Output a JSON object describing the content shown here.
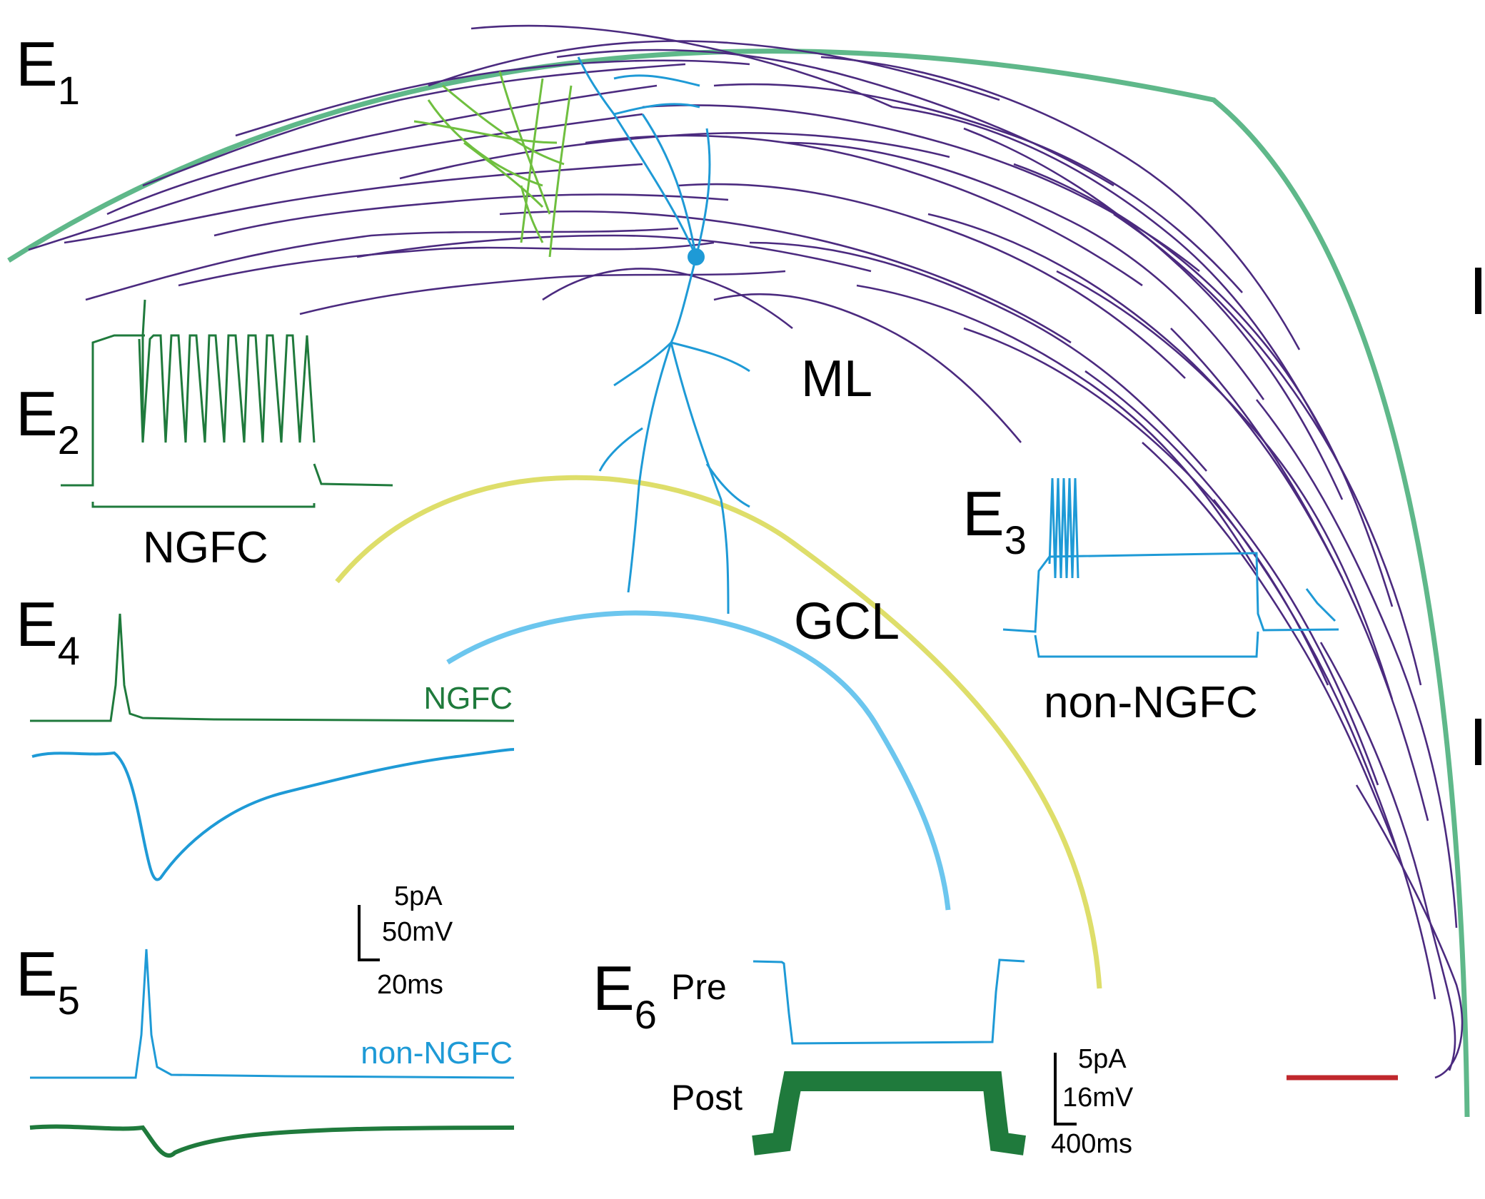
{
  "panels": {
    "e1": {
      "letter": "E",
      "num": "1"
    },
    "e2": {
      "letter": "E",
      "num": "2"
    },
    "e3": {
      "letter": "E",
      "num": "3"
    },
    "e4": {
      "letter": "E",
      "num": "4"
    },
    "e5": {
      "letter": "E",
      "num": "5"
    },
    "e6": {
      "letter": "E",
      "num": "6"
    }
  },
  "regions": {
    "ml": "ML",
    "gcl": "GCL"
  },
  "captions": {
    "e2_cell": "NGFC",
    "e3_cell": "non-NGFC",
    "e4_trace": "NGFC",
    "e5_trace": "non-NGFC",
    "e6_pre": "Pre",
    "e6_post": "Post"
  },
  "scalebars": {
    "left": {
      "current": "5pA",
      "voltage": "50mV",
      "time": "20ms"
    },
    "right": {
      "current": "5pA",
      "voltage": "16mV",
      "time": "400ms"
    }
  },
  "colors": {
    "ngfc_green": "#1f7a3c",
    "nonngfc_blue": "#1e9ad6",
    "axon_purple": "#4b2a7f",
    "outer_arc": "#5fb88a",
    "yellow_arc": "#dede6a",
    "blue_arc": "#6cc6ee",
    "red_bar": "#c0282d"
  }
}
